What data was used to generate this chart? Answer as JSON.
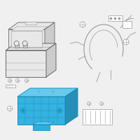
{
  "bg_color": "#f0f0f0",
  "highlight_color": "#2ab0e0",
  "highlight_dark": "#1a8ab5",
  "highlight_light": "#60c8ee",
  "line_color": "#999999",
  "dark_line": "#666666",
  "fig_bg": "#f0f0f0",
  "white": "#ffffff",
  "gray_fill": "#e8e8e8",
  "gray_dark": "#cccccc"
}
